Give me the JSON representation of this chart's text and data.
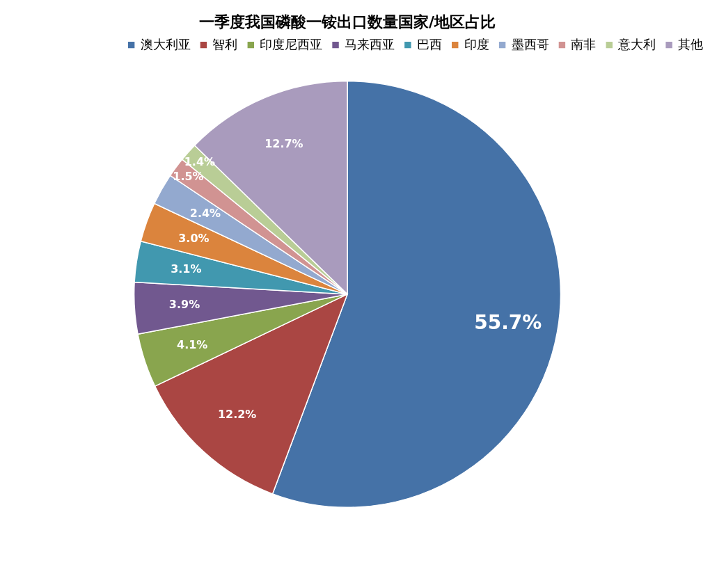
{
  "chart_data": {
    "type": "pie",
    "title": "一季度我国磷酸一铵出口数量国家/地区占比",
    "categories": [
      "澳大利亚",
      "智利",
      "印度尼西亚",
      "马来西亚",
      "巴西",
      "印度",
      "墨西哥",
      "南非",
      "意大利",
      "其他"
    ],
    "values": [
      55.7,
      12.2,
      4.1,
      3.9,
      3.1,
      3.0,
      2.4,
      1.5,
      1.4,
      12.7
    ],
    "value_labels": [
      "55.7%",
      "12.2%",
      "4.1%",
      "3.9%",
      "3.1%",
      "3.0%",
      "2.4%",
      "1.5%",
      "1.4%",
      "12.7%"
    ],
    "colors": [
      "#4572a7",
      "#aa4643",
      "#89a54e",
      "#71588f",
      "#4198af",
      "#db843d",
      "#93a9cf",
      "#d19392",
      "#b9cd96",
      "#a99bbd"
    ],
    "legend": "top"
  }
}
